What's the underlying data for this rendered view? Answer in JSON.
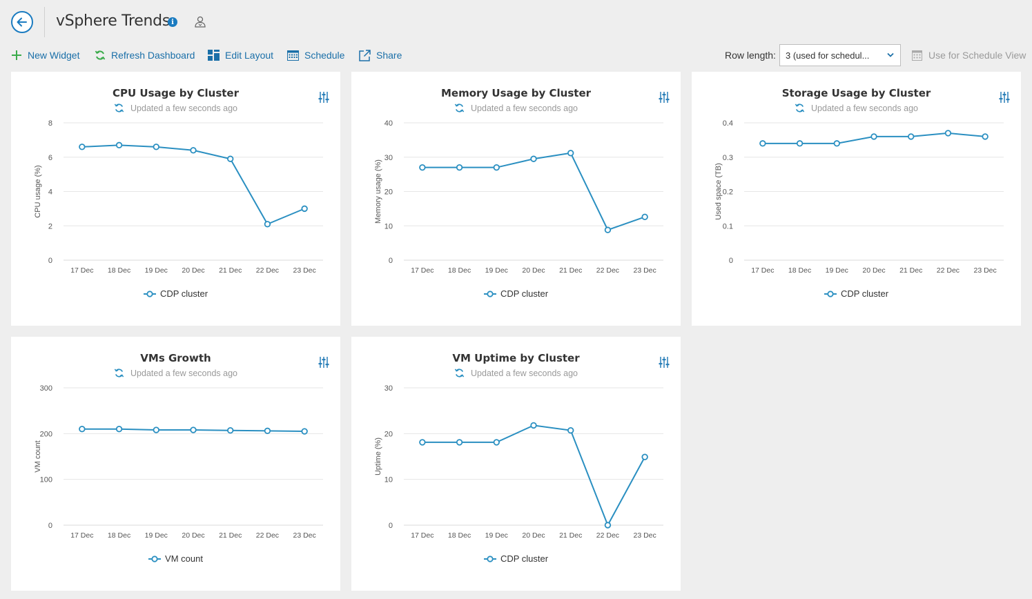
{
  "header": {
    "title": "vSphere Trends",
    "info_icon": "i"
  },
  "toolbar": {
    "new_widget": "New Widget",
    "refresh": "Refresh Dashboard",
    "edit_layout": "Edit Layout",
    "schedule": "Schedule",
    "share": "Share",
    "row_length_label": "Row length:",
    "row_length_value": "3 (used for schedul...",
    "use_schedule_view": "Use for Schedule View"
  },
  "colors": {
    "accent": "#1a7bc0",
    "series": "#2a8fc1",
    "green": "#3aab4a",
    "grid": "#e6e6e6"
  },
  "widgets": [
    {
      "title": "CPU Usage by Cluster",
      "updated": "Updated a few seconds ago",
      "legend": "CDP cluster"
    },
    {
      "title": "Memory Usage by Cluster",
      "updated": "Updated a few seconds ago",
      "legend": "CDP cluster"
    },
    {
      "title": "Storage Usage by Cluster",
      "updated": "Updated a few seconds ago",
      "legend": "CDP cluster"
    },
    {
      "title": "VMs Growth",
      "updated": "Updated a few seconds ago",
      "legend": "VM count"
    },
    {
      "title": "VM Uptime by Cluster",
      "updated": "Updated a few seconds ago",
      "legend": "CDP cluster"
    }
  ],
  "chart_data": [
    {
      "type": "line",
      "title": "CPU Usage by Cluster",
      "ylabel": "CPU usage (%)",
      "x": [
        "17 Dec",
        "18 Dec",
        "19 Dec",
        "20 Dec",
        "21 Dec",
        "22 Dec",
        "23 Dec"
      ],
      "yticks": [
        "0",
        "2",
        "4",
        "6",
        "8"
      ],
      "ylim": [
        0,
        8
      ],
      "grid": true,
      "legend_position": "bottom",
      "series": [
        {
          "name": "CDP cluster",
          "values": [
            6.6,
            6.7,
            6.6,
            6.4,
            5.9,
            2.1,
            3.0
          ]
        }
      ]
    },
    {
      "type": "line",
      "title": "Memory Usage by Cluster",
      "ylabel": "Memory usage (%)",
      "x": [
        "17 Dec",
        "18 Dec",
        "19 Dec",
        "20 Dec",
        "21 Dec",
        "22 Dec",
        "23 Dec"
      ],
      "yticks": [
        "0",
        "10",
        "20",
        "30",
        "40"
      ],
      "ylim": [
        0,
        40
      ],
      "grid": true,
      "legend_position": "bottom",
      "series": [
        {
          "name": "CDP cluster",
          "values": [
            27,
            27,
            27,
            29.5,
            31.2,
            8.8,
            12.6
          ]
        }
      ]
    },
    {
      "type": "line",
      "title": "Storage Usage by Cluster",
      "ylabel": "Used space (TB)",
      "x": [
        "17 Dec",
        "18 Dec",
        "19 Dec",
        "20 Dec",
        "21 Dec",
        "22 Dec",
        "23 Dec"
      ],
      "yticks": [
        "0",
        "0.1",
        "0.2",
        "0.3",
        "0.4"
      ],
      "ylim": [
        0,
        0.4
      ],
      "grid": true,
      "legend_position": "bottom",
      "series": [
        {
          "name": "CDP cluster",
          "values": [
            0.34,
            0.34,
            0.34,
            0.36,
            0.36,
            0.37,
            0.36
          ]
        }
      ]
    },
    {
      "type": "line",
      "title": "VMs Growth",
      "ylabel": "VM count",
      "x": [
        "17 Dec",
        "18 Dec",
        "19 Dec",
        "20 Dec",
        "21 Dec",
        "22 Dec",
        "23 Dec"
      ],
      "yticks": [
        "0",
        "100",
        "200",
        "300"
      ],
      "ylim": [
        0,
        300
      ],
      "grid": true,
      "legend_position": "bottom",
      "series": [
        {
          "name": "VM count",
          "values": [
            210,
            210,
            208,
            208,
            207,
            206,
            205
          ]
        }
      ]
    },
    {
      "type": "line",
      "title": "VM Uptime by Cluster",
      "ylabel": "Uptime (%)",
      "x": [
        "17 Dec",
        "18 Dec",
        "19 Dec",
        "20 Dec",
        "21 Dec",
        "22 Dec",
        "23 Dec"
      ],
      "yticks": [
        "0",
        "10",
        "20",
        "30"
      ],
      "ylim": [
        0,
        30
      ],
      "grid": true,
      "legend_position": "bottom",
      "series": [
        {
          "name": "CDP cluster",
          "values": [
            18.1,
            18.1,
            18.1,
            21.8,
            20.7,
            0,
            14.9
          ]
        }
      ]
    }
  ]
}
